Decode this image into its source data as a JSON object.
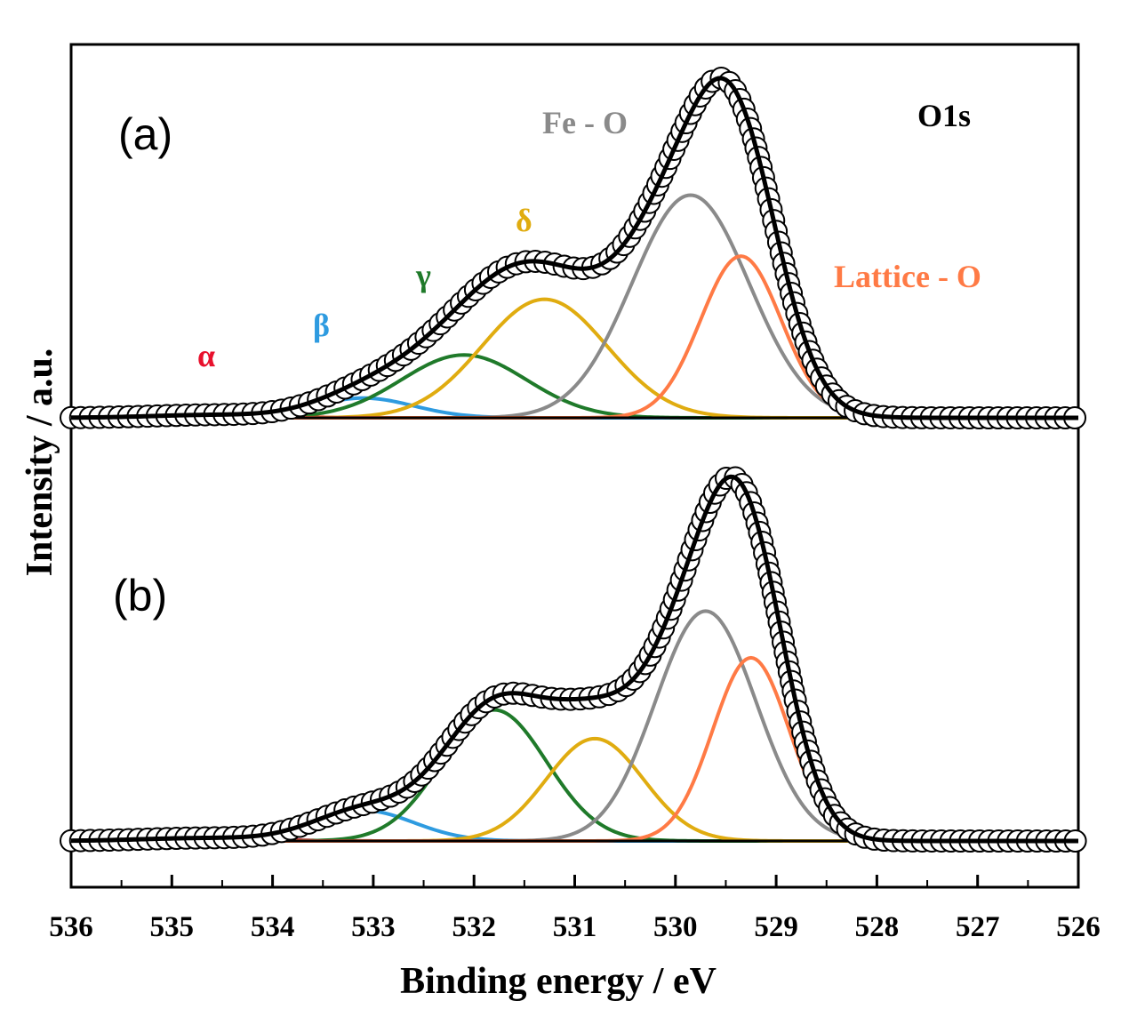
{
  "chart_data": {
    "type": "line",
    "title": "O1s",
    "xlabel": "Binding energy / eV",
    "ylabel": "Intensity / a.u.",
    "xlim": [
      536,
      526
    ],
    "x_reversed": true,
    "xticks": [
      "536",
      "535",
      "534",
      "533",
      "532",
      "531",
      "530",
      "529",
      "528",
      "527",
      "526"
    ],
    "y_ticks_shown": false,
    "components": [
      {
        "key": "alpha",
        "label": "α",
        "color": "#e8112d"
      },
      {
        "key": "beta",
        "label": "β",
        "color": "#2e9be0"
      },
      {
        "key": "gamma",
        "label": "γ",
        "color": "#1f7a2a"
      },
      {
        "key": "delta",
        "label": "δ",
        "color": "#e0ac10"
      },
      {
        "key": "feo",
        "label": "Fe - O",
        "color": "#8a8a8a"
      },
      {
        "key": "lattice",
        "label": "Lattice - O",
        "color": "#ff7a45"
      }
    ],
    "panels": [
      {
        "label": "(a)",
        "baseline": 0,
        "peaks": [
          {
            "component": "alpha",
            "center": 534.6,
            "height": 0.008,
            "sigma": 0.6
          },
          {
            "component": "beta",
            "center": 533.1,
            "height": 0.055,
            "sigma": 0.5
          },
          {
            "component": "gamma",
            "center": 532.1,
            "height": 0.175,
            "sigma": 0.62
          },
          {
            "component": "delta",
            "center": 531.3,
            "height": 0.33,
            "sigma": 0.62
          },
          {
            "component": "feo",
            "center": 529.85,
            "height": 0.62,
            "sigma": 0.58
          },
          {
            "component": "lattice",
            "center": 529.35,
            "height": 0.45,
            "sigma": 0.4
          }
        ]
      },
      {
        "label": "(b)",
        "baseline": 0,
        "peaks": [
          {
            "component": "alpha",
            "center": 534.7,
            "height": 0.008,
            "sigma": 0.6
          },
          {
            "component": "beta",
            "center": 533.1,
            "height": 0.085,
            "sigma": 0.5
          },
          {
            "component": "gamma",
            "center": 531.8,
            "height": 0.365,
            "sigma": 0.52
          },
          {
            "component": "delta",
            "center": 530.8,
            "height": 0.285,
            "sigma": 0.48
          },
          {
            "component": "feo",
            "center": 529.7,
            "height": 0.64,
            "sigma": 0.5
          },
          {
            "component": "lattice",
            "center": 529.25,
            "height": 0.51,
            "sigma": 0.38
          }
        ]
      }
    ],
    "series": [
      {
        "name": "Experimental (open circles)",
        "color": "#000000",
        "marker": "circle"
      },
      {
        "name": "Fitted envelope",
        "color": "#000000"
      }
    ]
  }
}
